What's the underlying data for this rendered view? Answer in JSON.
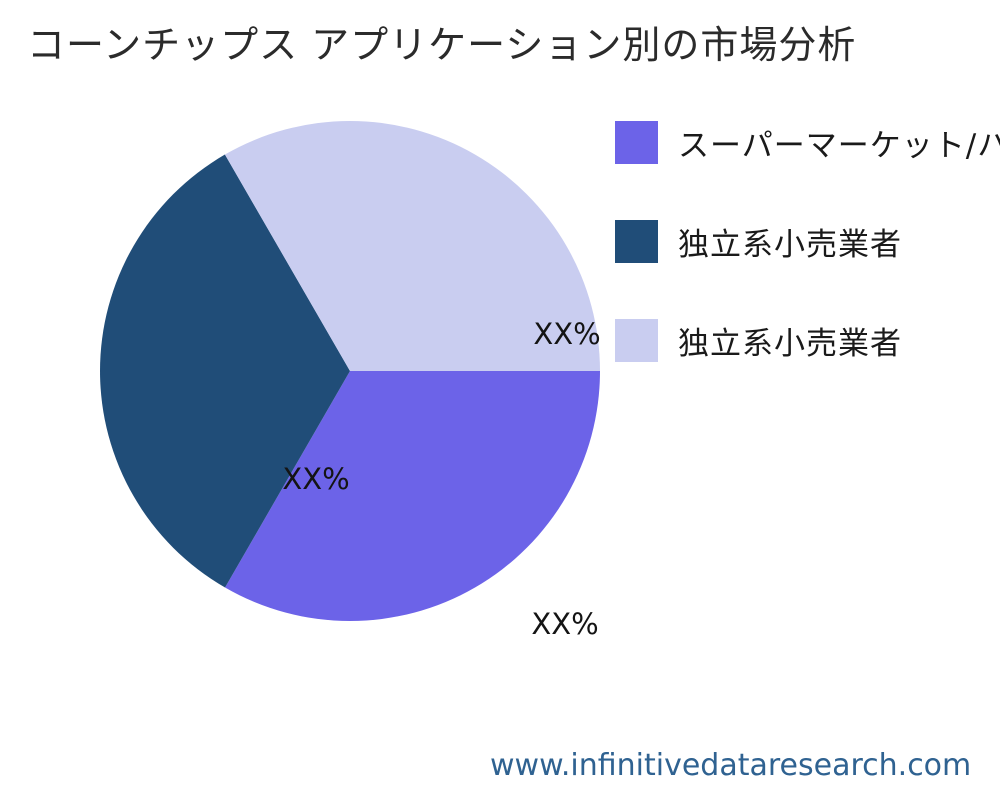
{
  "page": {
    "title": "コーンチップス アプリケーション別の市場分析",
    "footer_url": "www.infinitivedataresearch.com"
  },
  "chart_data": {
    "type": "pie",
    "title": "コーンチップス アプリケーション別の市場分析",
    "start_angle_deg": 0,
    "direction": "clockwise",
    "legend_position": "upper right",
    "source_watermark": "www.infinitivedataresearch.com",
    "slices": [
      {
        "label": "スーパーマーケット/ハ",
        "value": 33.33,
        "display": "XX%",
        "color": "#6c63e8"
      },
      {
        "label": "独立系小売業者",
        "value": 33.33,
        "display": "XX%",
        "color": "#204d78"
      },
      {
        "label": "独立系小売業者",
        "value": 33.34,
        "display": "XX%",
        "color": "#c9cdf0"
      }
    ]
  }
}
